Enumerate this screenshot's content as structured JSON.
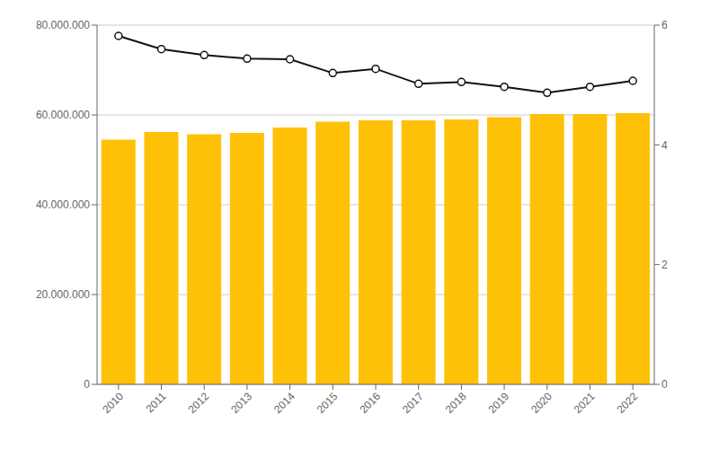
{
  "chart_data": {
    "type": "bar",
    "categories": [
      "2010",
      "2011",
      "2012",
      "2013",
      "2014",
      "2015",
      "2016",
      "2017",
      "2018",
      "2019",
      "2020",
      "2021",
      "2022"
    ],
    "series": [
      {
        "type": "bar",
        "color": "#FFC107",
        "values": [
          54500000,
          56200000,
          55700000,
          56000000,
          57200000,
          58500000,
          58800000,
          58800000,
          59000000,
          59500000,
          60200000,
          60200000,
          60400000
        ]
      },
      {
        "type": "line",
        "axis": "y2",
        "color": "#111111",
        "marker": "circle",
        "values": [
          5.82,
          5.6,
          5.5,
          5.44,
          5.43,
          5.2,
          5.27,
          5.02,
          5.05,
          4.97,
          4.87,
          4.97,
          5.07
        ]
      }
    ],
    "ylim": [
      0,
      80000000
    ],
    "yticks": [
      0,
      {
        "value": 20000000,
        "label": "20.000.000"
      },
      {
        "value": 40000000,
        "label": "40.000.000"
      },
      {
        "value": 60000000,
        "label": "60.000.000"
      },
      {
        "value": 80000000,
        "label": "80.000.000"
      }
    ],
    "y2lim": [
      0,
      6
    ],
    "y2ticks": [
      0,
      2,
      4,
      6
    ],
    "grid": true
  }
}
